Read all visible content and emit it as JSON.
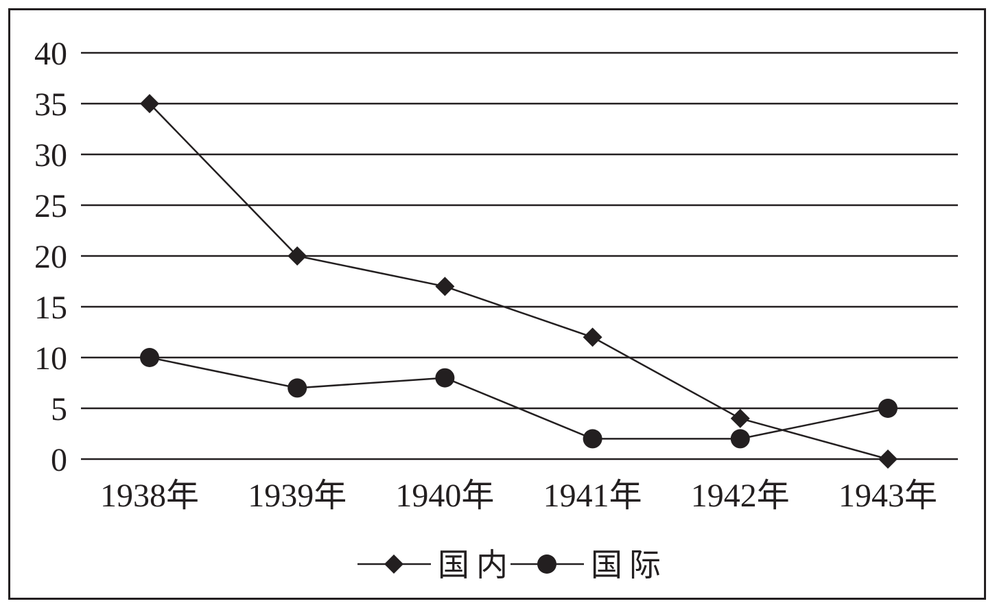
{
  "chart_data": {
    "type": "line",
    "title": "",
    "xlabel": "",
    "ylabel": "",
    "categories": [
      "1938年",
      "1939年",
      "1940年",
      "1941年",
      "1942年",
      "1943年"
    ],
    "ylim": [
      0,
      40
    ],
    "yticks": [
      0,
      5,
      10,
      15,
      20,
      25,
      30,
      35,
      40
    ],
    "grid": true,
    "legend_position": "bottom-center",
    "series": [
      {
        "name": "国内",
        "marker": "diamond",
        "values": [
          35,
          20,
          17,
          12,
          4,
          0
        ]
      },
      {
        "name": "国际",
        "marker": "circle",
        "values": [
          10,
          7,
          8,
          2,
          2,
          5
        ]
      }
    ],
    "colors": {
      "ink": "#231f20",
      "background": "#ffffff"
    }
  }
}
